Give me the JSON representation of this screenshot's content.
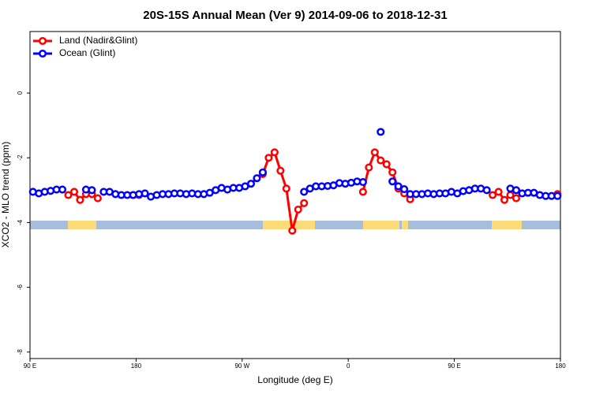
{
  "chart_data": {
    "type": "line",
    "title": "20S-15S Annual Mean (Ver 9)   2014-09-06 to 2018-12-31",
    "x_label": "Longitude (deg E)",
    "y_label": "XCO2 - MLO trend (ppm)",
    "legend": "top-left",
    "x": [
      92.5,
      97.5,
      102.5,
      107.5,
      112.5,
      117.5,
      122.5,
      127.5,
      132.5,
      137.5,
      142.5,
      147.5,
      152.5,
      157.5,
      162.5,
      167.5,
      172.5,
      177.5,
      182.5,
      187.5,
      192.5,
      197.5,
      202.5,
      207.5,
      212.5,
      217.5,
      222.5,
      227.5,
      232.5,
      237.5,
      242.5,
      247.5,
      252.5,
      257.5,
      262.5,
      267.5,
      272.5,
      277.5,
      282.5,
      287.5,
      292.5,
      297.5,
      302.5,
      307.5,
      312.5,
      317.5,
      322.5,
      327.5,
      332.5,
      337.5,
      342.5,
      347.5,
      352.5,
      357.5,
      362.5,
      367.5,
      372.5,
      377.5,
      382.5,
      387.5,
      392.5,
      397.5,
      402.5,
      407.5,
      412.5,
      417.5,
      422.5,
      427.5,
      432.5,
      437.5,
      442.5,
      447.5,
      452.5,
      457.5,
      462.5,
      467.5,
      472.5,
      477.5,
      482.5,
      487.5,
      492.5,
      497.5,
      502.5,
      507.5,
      512.5,
      517.5,
      522.5,
      527.5,
      532.5,
      537.5
    ],
    "series": [
      {
        "name": "Land (Nadir&Glint)",
        "color": "#ff0000",
        "values": [
          null,
          null,
          null,
          null,
          null,
          null,
          -3.15,
          -3.05,
          -3.3,
          -3.12,
          -3.12,
          -3.25,
          null,
          null,
          null,
          null,
          null,
          -3.15,
          -3.15,
          null,
          null,
          null,
          null,
          null,
          null,
          null,
          null,
          null,
          null,
          null,
          null,
          null,
          null,
          null,
          null,
          null,
          null,
          null,
          null,
          -2.5,
          -2.0,
          -1.83,
          -2.4,
          -2.95,
          -4.25,
          -3.6,
          -3.4,
          null,
          null,
          null,
          null,
          null,
          null,
          null,
          null,
          null,
          -3.05,
          -2.3,
          -1.83,
          -2.08,
          -2.2,
          -2.45,
          -2.95,
          -3.1,
          -3.28,
          null,
          null,
          null,
          null,
          null,
          null,
          null,
          null,
          null,
          null,
          null,
          null,
          null,
          -3.15,
          -3.05,
          -3.3,
          -3.15,
          -3.25,
          null,
          null,
          null,
          null,
          null,
          null,
          -3.12
        ]
      },
      {
        "name": "Ocean (Glint)",
        "color": "#0000ff",
        "values": [
          -3.05,
          -3.1,
          -3.05,
          -3.02,
          -2.98,
          -2.98,
          null,
          null,
          null,
          -2.98,
          -3.0,
          null,
          -3.05,
          -3.05,
          -3.12,
          -3.15,
          -3.15,
          -3.15,
          -3.12,
          -3.1,
          -3.2,
          -3.15,
          -3.12,
          -3.12,
          -3.1,
          -3.1,
          -3.12,
          -3.1,
          -3.12,
          -3.12,
          -3.08,
          -3.0,
          -2.93,
          -2.98,
          -2.93,
          -2.93,
          -2.88,
          -2.8,
          -2.63,
          -2.45,
          null,
          null,
          null,
          null,
          null,
          null,
          -3.05,
          -2.95,
          -2.88,
          -2.88,
          -2.87,
          -2.85,
          -2.78,
          -2.8,
          -2.77,
          -2.73,
          -2.75,
          null,
          null,
          -1.2,
          null,
          -2.73,
          -2.88,
          -2.97,
          -3.12,
          -3.12,
          -3.12,
          -3.1,
          -3.12,
          -3.1,
          -3.1,
          -3.05,
          -3.1,
          -3.03,
          -3.0,
          -2.95,
          -2.95,
          -3.0,
          null,
          null,
          null,
          -2.95,
          -3.0,
          -3.1,
          -3.08,
          -3.08,
          -3.15,
          -3.18,
          -3.18,
          -3.18
        ]
      }
    ],
    "xlim": [
      90,
      540
    ],
    "xticks": [
      {
        "value": 90,
        "label": "90 E"
      },
      180,
      {
        "value": 270,
        "label": "90 W"
      },
      {
        "value": 360,
        "label": "0"
      },
      {
        "value": 450,
        "label": "90 E"
      },
      {
        "value": 540,
        "label": "180"
      }
    ],
    "ylim": [
      -8.2,
      1.9
    ],
    "yticks": [
      0,
      -2,
      -4,
      -6,
      -8
    ]
  }
}
